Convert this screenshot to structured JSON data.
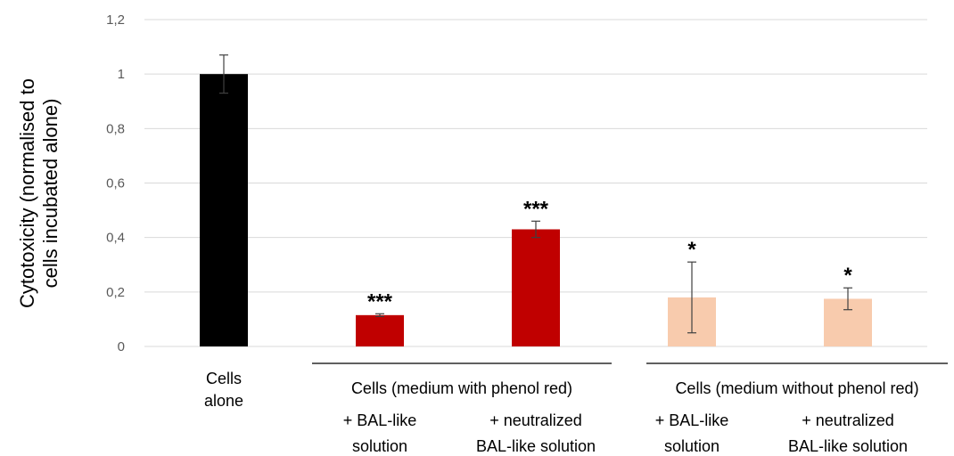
{
  "chart_data": {
    "type": "bar",
    "ylabel": "Cytotoxicity (normalised to cells incubated alone)",
    "ylabel_lines": [
      "Cytotoxicity (normalised to",
      "cells incubated alone)"
    ],
    "ylim": [
      0,
      1.2
    ],
    "yticks": [
      "0",
      "0,2",
      "0,4",
      "0,6",
      "0,8",
      "1",
      "1,2"
    ],
    "grid": true,
    "categories": [
      {
        "lines": [
          "Cells",
          "alone"
        ],
        "value": 1.0,
        "error": 0.07,
        "color": "#000000",
        "significance": ""
      },
      {
        "lines": [
          "+ BAL-like",
          "solution"
        ],
        "value": 0.115,
        "error": 0.005,
        "color": "#c00000",
        "significance": "***"
      },
      {
        "lines": [
          "+ neutralized",
          "BAL-like solution"
        ],
        "value": 0.43,
        "error": 0.03,
        "color": "#c00000",
        "significance": "***"
      },
      {
        "lines": [
          "+ BAL-like",
          "solution"
        ],
        "value": 0.18,
        "error": 0.13,
        "color": "#f8cbad",
        "significance": "*"
      },
      {
        "lines": [
          "+ neutralized",
          "BAL-like solution"
        ],
        "value": 0.175,
        "error": 0.04,
        "color": "#f8cbad",
        "significance": "*"
      }
    ],
    "groups": [
      {
        "label": "Cells (medium with phenol red)"
      },
      {
        "label": "Cells (medium without phenol red)"
      }
    ]
  }
}
